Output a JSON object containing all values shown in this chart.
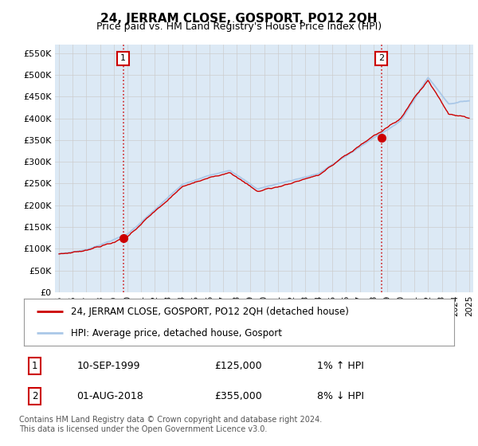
{
  "title": "24, JERRAM CLOSE, GOSPORT, PO12 2QH",
  "subtitle": "Price paid vs. HM Land Registry's House Price Index (HPI)",
  "ylabel_ticks": [
    "£0",
    "£50K",
    "£100K",
    "£150K",
    "£200K",
    "£250K",
    "£300K",
    "£350K",
    "£400K",
    "£450K",
    "£500K",
    "£550K"
  ],
  "ytick_values": [
    0,
    50000,
    100000,
    150000,
    200000,
    250000,
    300000,
    350000,
    400000,
    450000,
    500000,
    550000
  ],
  "ylim": [
    0,
    570000
  ],
  "xlim_start": 1994.7,
  "xlim_end": 2025.3,
  "sale1": {
    "year": 1999.7,
    "price": 125000
  },
  "sale2": {
    "year": 2018.58,
    "price": 355000
  },
  "hpi_color": "#aac8e8",
  "price_color": "#cc0000",
  "sale_marker_color": "#cc0000",
  "grid_color": "#cccccc",
  "chart_bg_color": "#dce9f5",
  "fig_bg_color": "#ffffff",
  "legend_label_price": "24, JERRAM CLOSE, GOSPORT, PO12 2QH (detached house)",
  "legend_label_hpi": "HPI: Average price, detached house, Gosport",
  "footnote": "Contains HM Land Registry data © Crown copyright and database right 2024.\nThis data is licensed under the Open Government Licence v3.0.",
  "table_rows": [
    {
      "num": "1",
      "date": "10-SEP-1999",
      "price": "£125,000",
      "hpi": "1% ↑ HPI"
    },
    {
      "num": "2",
      "date": "01-AUG-2018",
      "price": "£355,000",
      "hpi": "8% ↓ HPI"
    }
  ]
}
